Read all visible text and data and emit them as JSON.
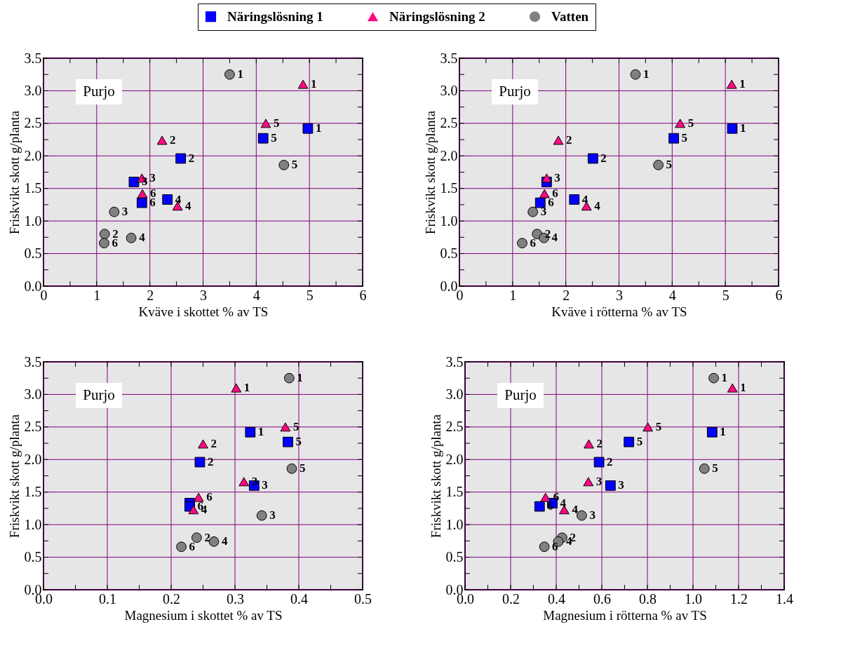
{
  "chart_data": [
    {
      "type": "scatter",
      "xlabel": "Kväve i skottet % av TS",
      "ylabel": "Friskvikt skott g/planta",
      "legend": "top",
      "grid": true,
      "xlim": [
        0,
        6
      ],
      "ylim": [
        0,
        3.5
      ],
      "xticks": [
        0,
        {
          "value": 0.5,
          "label": null
        },
        1,
        {
          "value": 1.5,
          "label": null
        },
        2,
        {
          "value": 2.5,
          "label": null
        },
        3,
        {
          "value": 3.5,
          "label": null
        },
        4,
        {
          "value": 4.5,
          "label": null
        },
        5,
        {
          "value": 5.5,
          "label": null
        },
        6
      ],
      "yticks": [
        {
          "value": 0,
          "label": "0.0"
        },
        {
          "value": 0.25,
          "label": null
        },
        {
          "value": 0.5,
          "label": "0.5"
        },
        {
          "value": 0.75,
          "label": null
        },
        {
          "value": 1,
          "label": "1.0"
        },
        {
          "value": 1.25,
          "label": null
        },
        {
          "value": 1.5,
          "label": "1.5"
        },
        {
          "value": 1.75,
          "label": null
        },
        {
          "value": 2,
          "label": "2.0"
        },
        {
          "value": 2.25,
          "label": null
        },
        {
          "value": 2.5,
          "label": "2.5"
        },
        {
          "value": 2.75,
          "label": null
        },
        {
          "value": 3,
          "label": "3.0"
        },
        {
          "value": 3.25,
          "label": null
        },
        {
          "value": 3.5,
          "label": "3.5"
        }
      ],
      "series": [
        {
          "name": "Näringslösning 1",
          "color": "#0000ff",
          "marker": "square",
          "x": [
            4.97,
            2.58,
            1.7,
            2.33,
            4.13,
            1.85
          ],
          "values": [
            2.42,
            1.96,
            1.6,
            1.33,
            2.27,
            1.28
          ]
        },
        {
          "name": "Näringslösning 2",
          "color": "#ff0a80",
          "marker": "triangle",
          "x": [
            4.88,
            2.23,
            1.85,
            2.52,
            4.18,
            1.86
          ],
          "values": [
            3.1,
            2.24,
            1.66,
            1.23,
            2.5,
            1.42
          ]
        },
        {
          "name": "Vatten",
          "color": "#808080",
          "marker": "circle",
          "x": [
            3.5,
            1.15,
            1.33,
            1.65,
            4.52,
            1.14
          ],
          "values": [
            3.25,
            0.8,
            1.14,
            0.74,
            1.86,
            0.66
          ]
        }
      ],
      "annotations": [
        "Purjo",
        {
          "text": "1",
          "x": 4.97,
          "y": 2.42
        },
        {
          "text": "2",
          "x": 2.58,
          "y": 1.96
        },
        {
          "text": "3",
          "x": 1.7,
          "y": 1.6
        },
        {
          "text": "4",
          "x": 2.33,
          "y": 1.33
        },
        {
          "text": "5",
          "x": 4.13,
          "y": 2.27
        },
        {
          "text": "6",
          "x": 1.85,
          "y": 1.28
        },
        {
          "text": "1",
          "x": 4.88,
          "y": 3.1
        },
        {
          "text": "2",
          "x": 2.23,
          "y": 2.24
        },
        {
          "text": "3",
          "x": 1.85,
          "y": 1.66
        },
        {
          "text": "4",
          "x": 2.52,
          "y": 1.23
        },
        {
          "text": "5",
          "x": 4.18,
          "y": 2.5
        },
        {
          "text": "6",
          "x": 1.86,
          "y": 1.42
        },
        {
          "text": "1",
          "x": 3.5,
          "y": 3.25
        },
        {
          "text": "2",
          "x": 1.15,
          "y": 0.8
        },
        {
          "text": "3",
          "x": 1.33,
          "y": 1.14
        },
        {
          "text": "4",
          "x": 1.65,
          "y": 0.74
        },
        {
          "text": "5",
          "x": 4.52,
          "y": 1.86
        },
        {
          "text": "6",
          "x": 1.14,
          "y": 0.66
        }
      ]
    },
    {
      "type": "scatter",
      "xlabel": "Kväve i rötterna % av TS",
      "ylabel": "Friskvikt skott g/planta",
      "legend": "top",
      "grid": true,
      "xlim": [
        0,
        6
      ],
      "ylim": [
        0,
        3.5
      ],
      "xticks": [
        0,
        {
          "value": 0.5,
          "label": null
        },
        1,
        {
          "value": 1.5,
          "label": null
        },
        2,
        {
          "value": 2.5,
          "label": null
        },
        3,
        {
          "value": 3.5,
          "label": null
        },
        4,
        {
          "value": 4.5,
          "label": null
        },
        5,
        {
          "value": 5.5,
          "label": null
        },
        6
      ],
      "yticks": [
        {
          "value": 0,
          "label": "0.0"
        },
        {
          "value": 0.25,
          "label": null
        },
        {
          "value": 0.5,
          "label": "0.5"
        },
        {
          "value": 0.75,
          "label": null
        },
        {
          "value": 1,
          "label": "1.0"
        },
        {
          "value": 1.25,
          "label": null
        },
        {
          "value": 1.5,
          "label": "1.5"
        },
        {
          "value": 1.75,
          "label": null
        },
        {
          "value": 2,
          "label": "2.0"
        },
        {
          "value": 2.25,
          "label": null
        },
        {
          "value": 2.5,
          "label": "2.5"
        },
        {
          "value": 2.75,
          "label": null
        },
        {
          "value": 3,
          "label": "3.0"
        },
        {
          "value": 3.25,
          "label": null
        },
        {
          "value": 3.5,
          "label": "3.5"
        }
      ],
      "series": [
        {
          "name": "Näringslösning 1",
          "color": "#0000ff",
          "marker": "square",
          "x": [
            5.13,
            2.51,
            1.64,
            2.16,
            4.03,
            1.52
          ],
          "values": [
            2.42,
            1.96,
            1.6,
            1.33,
            2.27,
            1.28
          ]
        },
        {
          "name": "Näringslösning 2",
          "color": "#ff0a80",
          "marker": "triangle",
          "x": [
            5.12,
            1.86,
            1.64,
            2.39,
            4.15,
            1.6
          ],
          "values": [
            3.1,
            2.24,
            1.66,
            1.23,
            2.5,
            1.42
          ]
        },
        {
          "name": "Vatten",
          "color": "#808080",
          "marker": "circle",
          "x": [
            3.31,
            1.46,
            1.38,
            1.59,
            3.74,
            1.18
          ],
          "values": [
            3.25,
            0.8,
            1.14,
            0.74,
            1.86,
            0.66
          ]
        }
      ],
      "annotations": [
        "Purjo",
        {
          "text": "1",
          "x": 5.13,
          "y": 2.42
        },
        {
          "text": "2",
          "x": 2.51,
          "y": 1.96
        },
        {
          "text": "4",
          "x": 2.16,
          "y": 1.33
        },
        {
          "text": "5",
          "x": 4.03,
          "y": 2.27
        },
        {
          "text": "6",
          "x": 1.52,
          "y": 1.28
        },
        {
          "text": "1",
          "x": 5.12,
          "y": 3.1
        },
        {
          "text": "2",
          "x": 1.86,
          "y": 2.24
        },
        {
          "text": "3",
          "x": 1.64,
          "y": 1.66
        },
        {
          "text": "4",
          "x": 2.39,
          "y": 1.23
        },
        {
          "text": "5",
          "x": 4.15,
          "y": 2.5
        },
        {
          "text": "6",
          "x": 1.6,
          "y": 1.42
        },
        {
          "text": "1",
          "x": 3.31,
          "y": 3.25
        },
        {
          "text": "2",
          "x": 1.46,
          "y": 0.8
        },
        {
          "text": "3",
          "x": 1.38,
          "y": 1.14
        },
        {
          "text": "4",
          "x": 1.59,
          "y": 0.74
        },
        {
          "text": "5",
          "x": 3.74,
          "y": 1.86
        },
        {
          "text": "6",
          "x": 1.18,
          "y": 0.66
        }
      ]
    },
    {
      "type": "scatter",
      "xlabel": "Magnesium i skottet % av TS",
      "ylabel": "Friskvikt skott g/planta",
      "legend": "top",
      "grid": true,
      "xlim": [
        0,
        0.5
      ],
      "ylim": [
        0,
        3.5
      ],
      "xticks": [
        {
          "value": 0,
          "label": "0.0"
        },
        {
          "value": 0.05,
          "label": null
        },
        0.1,
        {
          "value": 0.15,
          "label": null
        },
        0.2,
        {
          "value": 0.25,
          "label": null
        },
        0.3,
        {
          "value": 0.35,
          "label": null
        },
        0.4,
        {
          "value": 0.45,
          "label": null
        },
        0.5
      ],
      "yticks": [
        {
          "value": 0,
          "label": "0.0"
        },
        {
          "value": 0.25,
          "label": null
        },
        {
          "value": 0.5,
          "label": "0.5"
        },
        {
          "value": 0.75,
          "label": null
        },
        {
          "value": 1,
          "label": "1.0"
        },
        {
          "value": 1.25,
          "label": null
        },
        {
          "value": 1.5,
          "label": "1.5"
        },
        {
          "value": 1.75,
          "label": null
        },
        {
          "value": 2,
          "label": "2.0"
        },
        {
          "value": 2.25,
          "label": null
        },
        {
          "value": 2.5,
          "label": "2.5"
        },
        {
          "value": 2.75,
          "label": null
        },
        {
          "value": 3,
          "label": "3.0"
        },
        {
          "value": 3.25,
          "label": null
        },
        {
          "value": 3.5,
          "label": "3.5"
        }
      ],
      "series": [
        {
          "name": "Näringslösning 1",
          "color": "#0000ff",
          "marker": "square",
          "x": [
            0.324,
            0.245,
            0.33,
            0.229,
            0.383,
            0.229
          ],
          "values": [
            2.42,
            1.96,
            1.6,
            1.33,
            2.27,
            1.28
          ]
        },
        {
          "name": "Näringslösning 2",
          "color": "#ff0a80",
          "marker": "triangle",
          "x": [
            0.302,
            0.25,
            0.314,
            0.235,
            0.379,
            0.243
          ],
          "values": [
            3.1,
            2.24,
            1.66,
            1.23,
            2.5,
            1.42
          ]
        },
        {
          "name": "Vatten",
          "color": "#808080",
          "marker": "circle",
          "x": [
            0.385,
            0.24,
            0.342,
            0.267,
            0.389,
            0.216
          ],
          "values": [
            3.25,
            0.8,
            1.14,
            0.74,
            1.86,
            0.66
          ]
        }
      ],
      "annotations": [
        "Purjo",
        {
          "text": "1",
          "x": 0.324,
          "y": 2.42
        },
        {
          "text": "2",
          "x": 0.245,
          "y": 1.96
        },
        {
          "text": "3",
          "x": 0.33,
          "y": 1.6
        },
        {
          "text": "5",
          "x": 0.383,
          "y": 2.27
        },
        {
          "text": "6",
          "x": 0.229,
          "y": 1.28
        },
        {
          "text": "1",
          "x": 0.302,
          "y": 3.1
        },
        {
          "text": "2",
          "x": 0.25,
          "y": 2.24
        },
        {
          "text": "3",
          "x": 0.314,
          "y": 1.66
        },
        {
          "text": "4",
          "x": 0.235,
          "y": 1.23
        },
        {
          "text": "5",
          "x": 0.379,
          "y": 2.5
        },
        {
          "text": "6",
          "x": 0.243,
          "y": 1.42
        },
        {
          "text": "1",
          "x": 0.385,
          "y": 3.25
        },
        {
          "text": "2",
          "x": 0.24,
          "y": 0.8
        },
        {
          "text": "3",
          "x": 0.342,
          "y": 1.14
        },
        {
          "text": "4",
          "x": 0.267,
          "y": 0.74
        },
        {
          "text": "5",
          "x": 0.389,
          "y": 1.86
        },
        {
          "text": "6",
          "x": 0.216,
          "y": 0.66
        }
      ]
    },
    {
      "type": "scatter",
      "xlabel": "Magnesium i rötterna % av TS",
      "ylabel": "Friskvikt skott g/planta",
      "legend": "top",
      "grid": true,
      "xlim": [
        0,
        1.4
      ],
      "ylim": [
        0,
        3.5
      ],
      "xticks": [
        {
          "value": 0,
          "label": "0.0"
        },
        {
          "value": 0.1,
          "label": null
        },
        0.2,
        {
          "value": 0.3,
          "label": null
        },
        0.4,
        {
          "value": 0.5,
          "label": null
        },
        0.6,
        {
          "value": 0.7,
          "label": null
        },
        0.8,
        {
          "value": 0.9,
          "label": null
        },
        {
          "value": 1,
          "label": "1.0"
        },
        {
          "value": 1.1,
          "label": null
        },
        1.2,
        {
          "value": 1.3,
          "label": null
        },
        1.4
      ],
      "yticks": [
        {
          "value": 0,
          "label": "0.0"
        },
        {
          "value": 0.25,
          "label": null
        },
        {
          "value": 0.5,
          "label": "0.5"
        },
        {
          "value": 0.75,
          "label": null
        },
        {
          "value": 1,
          "label": "1.0"
        },
        {
          "value": 1.25,
          "label": null
        },
        {
          "value": 1.5,
          "label": "1.5"
        },
        {
          "value": 1.75,
          "label": null
        },
        {
          "value": 2,
          "label": "2.0"
        },
        {
          "value": 2.25,
          "label": null
        },
        {
          "value": 2.5,
          "label": "2.5"
        },
        {
          "value": 2.75,
          "label": null
        },
        {
          "value": 3,
          "label": "3.0"
        },
        {
          "value": 3.25,
          "label": null
        },
        {
          "value": 3.5,
          "label": "3.5"
        }
      ],
      "series": [
        {
          "name": "Näringslösning 1",
          "color": "#0000ff",
          "marker": "square",
          "x": [
            1.084,
            0.588,
            0.638,
            0.383,
            0.719,
            0.327
          ],
          "values": [
            2.42,
            1.96,
            1.6,
            1.33,
            2.27,
            1.28
          ]
        },
        {
          "name": "Näringslösning 2",
          "color": "#ff0a80",
          "marker": "triangle",
          "x": [
            1.173,
            0.543,
            0.541,
            0.435,
            0.802,
            0.353
          ],
          "values": [
            3.1,
            2.24,
            1.66,
            1.23,
            2.5,
            1.42
          ]
        },
        {
          "name": "Vatten",
          "color": "#808080",
          "marker": "circle",
          "x": [
            1.091,
            0.426,
            0.512,
            0.409,
            1.05,
            0.348
          ],
          "values": [
            3.25,
            0.8,
            1.14,
            0.74,
            1.86,
            0.66
          ]
        }
      ],
      "annotations": [
        "Purjo",
        {
          "text": "1",
          "x": 1.084,
          "y": 2.42
        },
        {
          "text": "2",
          "x": 0.588,
          "y": 1.96
        },
        {
          "text": "3",
          "x": 0.638,
          "y": 1.6
        },
        {
          "text": "4",
          "x": 0.383,
          "y": 1.33
        },
        {
          "text": "5",
          "x": 0.719,
          "y": 2.27
        },
        {
          "text": "6",
          "x": 0.327,
          "y": 1.28
        },
        {
          "text": "1",
          "x": 1.173,
          "y": 3.1
        },
        {
          "text": "2",
          "x": 0.543,
          "y": 2.24
        },
        {
          "text": "3",
          "x": 0.541,
          "y": 1.66
        },
        {
          "text": "4",
          "x": 0.435,
          "y": 1.23
        },
        {
          "text": "5",
          "x": 0.802,
          "y": 2.5
        },
        {
          "text": "6",
          "x": 0.353,
          "y": 1.42
        },
        {
          "text": "1",
          "x": 1.091,
          "y": 3.25
        },
        {
          "text": "2",
          "x": 0.426,
          "y": 0.8
        },
        {
          "text": "3",
          "x": 0.512,
          "y": 1.14
        },
        {
          "text": "4",
          "x": 0.409,
          "y": 0.74
        },
        {
          "text": "5",
          "x": 1.05,
          "y": 1.86
        },
        {
          "text": "6",
          "x": 0.348,
          "y": 0.66
        }
      ]
    }
  ]
}
